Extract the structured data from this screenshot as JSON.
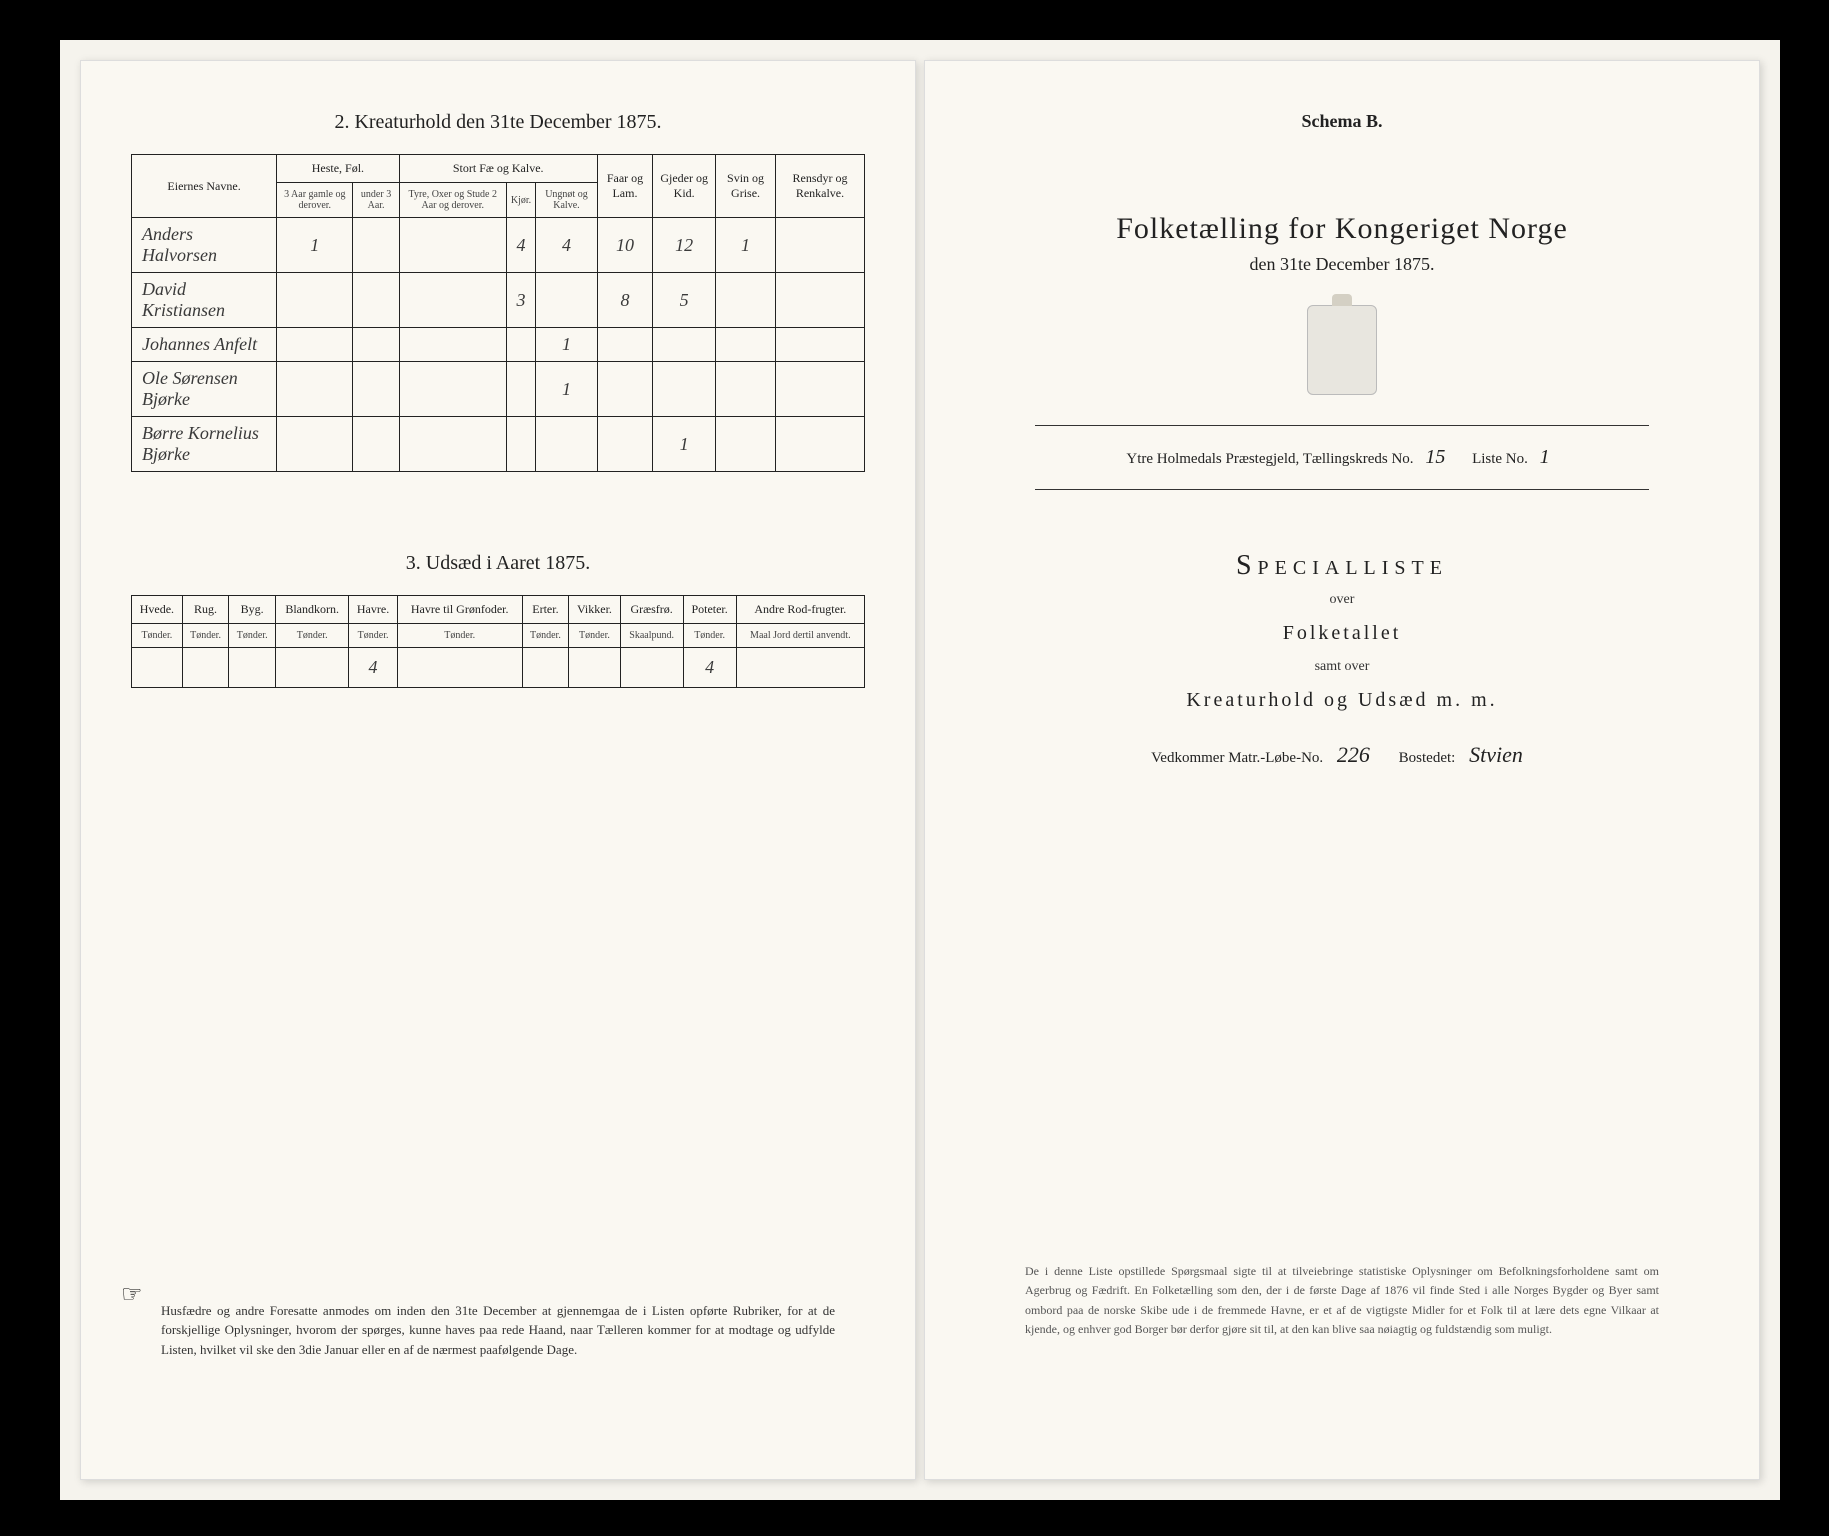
{
  "left": {
    "section2_title": "2. Kreaturhold den 31te December 1875.",
    "table2": {
      "head_row1": [
        "Eiernes Navne.",
        "Heste, Føl.",
        "Stort Fæ og Kalve.",
        "Faar og Lam.",
        "Gjeder og Kid.",
        "Svin og Grise.",
        "Rensdyr og Renkalve."
      ],
      "head_row2": [
        "",
        "3 Aar gamle og derover.",
        "under 3 Aar.",
        "Tyre, Oxer og Stude 2 Aar og derover.",
        "Kjør.",
        "Ungnøt og Kalve.",
        "",
        "",
        "",
        ""
      ],
      "rows": [
        {
          "name": "Anders Halvorsen",
          "cells": [
            "1",
            "",
            "",
            "4",
            "4",
            "10",
            "12",
            "1",
            ""
          ]
        },
        {
          "name": "David Kristiansen",
          "cells": [
            "",
            "",
            "",
            "3",
            "",
            "8",
            "5",
            "",
            ""
          ]
        },
        {
          "name": "Johannes Anfelt",
          "cells": [
            "",
            "",
            "",
            "",
            "1",
            "",
            "",
            "",
            ""
          ]
        },
        {
          "name": "Ole Sørensen Bjørke",
          "cells": [
            "",
            "",
            "",
            "",
            "1",
            "",
            "",
            "",
            ""
          ]
        },
        {
          "name": "Børre Kornelius Bjørke",
          "cells": [
            "",
            "",
            "",
            "",
            "",
            "",
            "1",
            "",
            ""
          ]
        }
      ]
    },
    "section3_title": "3. Udsæd i Aaret 1875.",
    "table3": {
      "headers": [
        "Hvede.",
        "Rug.",
        "Byg.",
        "Blandkorn.",
        "Havre.",
        "Havre til Grønfoder.",
        "Erter.",
        "Vikker.",
        "Græsfrø.",
        "Poteter.",
        "Andre Rod-frugter."
      ],
      "subheaders": [
        "Tønder.",
        "Tønder.",
        "Tønder.",
        "Tønder.",
        "Tønder.",
        "Tønder.",
        "Tønder.",
        "Tønder.",
        "Skaalpund.",
        "Tønder.",
        "Maal Jord dertil anvendt."
      ],
      "row": [
        "",
        "",
        "",
        "",
        "4",
        "",
        "",
        "",
        "",
        "4",
        ""
      ]
    },
    "footnote": "Husfædre og andre Foresatte anmodes om inden den 31te December at gjennemgaa de i Listen opførte Rubriker, for at de forskjellige Oplysninger, hvorom der spørges, kunne haves paa rede Haand, naar Tælleren kommer for at modtage og udfylde Listen, hvilket vil ske den 3die Januar eller en af de nærmest paafølgende Dage."
  },
  "right": {
    "schema": "Schema B.",
    "main_title": "Folketælling for Kongeriget Norge",
    "sub_date": "den 31te December 1875.",
    "district_prefix": "Ytre Holmedals Præstegjeld, Tællingskreds No.",
    "district_no": "15",
    "liste_label": "Liste No.",
    "liste_no": "1",
    "spec_title": "Specialliste",
    "spec_over": "over",
    "spec_folk": "Folketallet",
    "spec_samt": "samt over",
    "spec_kreat": "Kreaturhold og Udsæd m. m.",
    "vedk_label": "Vedkommer Matr.-Løbe-No.",
    "vedk_no": "226",
    "bosted_label": "Bostedet:",
    "bosted_val": "Stvien",
    "bottom_para": "De i denne Liste opstillede Spørgsmaal sigte til at tilveiebringe statistiske Oplysninger om Befolkningsforholdene samt om Agerbrug og Fædrift. En Folketælling som den, der i de første Dage af 1876 vil finde Sted i alle Norges Bygder og Byer samt ombord paa de norske Skibe ude i de fremmede Havne, er et af de vigtigste Midler for et Folk til at lære dets egne Vilkaar at kjende, og enhver god Borger bør derfor gjøre sit til, at den kan blive saa nøiagtig og fuldstændig som muligt."
  },
  "colors": {
    "bg": "#000000",
    "paper": "#faf8f2",
    "ink": "#222222",
    "faint": "#555555"
  }
}
